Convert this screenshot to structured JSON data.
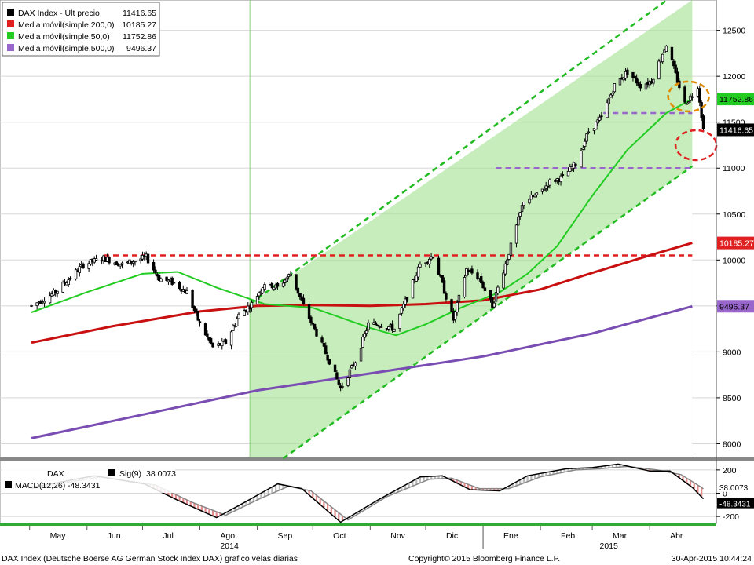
{
  "chart_data": {
    "type": "candlestick",
    "title": "DAX Index (Deutsche Boerse AG German Stock Index DAX) grafico velas diarias",
    "copyright": "Copyright© 2015 Bloomberg Finance L.P.",
    "timestamp": "30-Apr-2015 10:44:24",
    "x_months": [
      "May",
      "Jun",
      "Jul",
      "Ago",
      "Sep",
      "Oct",
      "Nov",
      "Dic",
      "Ene",
      "Feb",
      "Mar",
      "Abr"
    ],
    "x_years": [
      "2014",
      "2015"
    ],
    "y_ticks": [
      8000,
      8500,
      9000,
      9500,
      10000,
      10500,
      11000,
      11500,
      12000,
      12500
    ],
    "ylim": [
      7850,
      12830
    ],
    "legend": [
      {
        "label": "DAX Index - Últ precio",
        "value": "11416.65",
        "color": "#000000",
        "key": "price"
      },
      {
        "label": "Media móvil(simple,200,0)",
        "value": "10185.27",
        "color": "#e02020",
        "key": "ma200"
      },
      {
        "label": "Media móvil(simple,50,0)",
        "value": "11752.86",
        "color": "#22cc22",
        "key": "ma50"
      },
      {
        "label": "Media móvil(simple,500,0)",
        "value": "9496.37",
        "color": "#9966cc",
        "key": "ma500"
      }
    ],
    "right_labels": [
      {
        "value": 11752.86,
        "text": "11752.86",
        "bg": "#22cc22",
        "fg": "#000000"
      },
      {
        "value": 11416.65,
        "text": "11416.65",
        "bg": "#000000",
        "fg": "#ffffff"
      },
      {
        "value": 10185.27,
        "text": "10185.27",
        "bg": "#e02020",
        "fg": "#ffffff"
      },
      {
        "value": 9496.37,
        "text": "9496.37",
        "bg": "#9966cc",
        "fg": "#000000"
      }
    ],
    "price_path": [
      [
        "2014-05-02",
        9500
      ],
      [
        "2014-05-15",
        9650
      ],
      [
        "2014-05-30",
        9950
      ],
      [
        "2014-06-10",
        10020
      ],
      [
        "2014-06-20",
        9950
      ],
      [
        "2014-07-03",
        10030
      ],
      [
        "2014-07-10",
        9800
      ],
      [
        "2014-07-18",
        9750
      ],
      [
        "2014-07-25",
        9650
      ],
      [
        "2014-08-01",
        9300
      ],
      [
        "2014-08-08",
        9050
      ],
      [
        "2014-08-15",
        9100
      ],
      [
        "2014-08-22",
        9400
      ],
      [
        "2014-08-29",
        9520
      ],
      [
        "2014-09-05",
        9750
      ],
      [
        "2014-09-12",
        9700
      ],
      [
        "2014-09-19",
        9850
      ],
      [
        "2014-09-26",
        9500
      ],
      [
        "2014-10-03",
        9200
      ],
      [
        "2014-10-10",
        8900
      ],
      [
        "2014-10-16",
        8600
      ],
      [
        "2014-10-24",
        8900
      ],
      [
        "2014-10-31",
        9300
      ],
      [
        "2014-11-07",
        9300
      ],
      [
        "2014-11-14",
        9250
      ],
      [
        "2014-11-21",
        9600
      ],
      [
        "2014-11-28",
        9950
      ],
      [
        "2014-12-05",
        10050
      ],
      [
        "2014-12-12",
        9600
      ],
      [
        "2014-12-16",
        9350
      ],
      [
        "2014-12-23",
        9900
      ],
      [
        "2014-12-30",
        9800
      ],
      [
        "2015-01-06",
        9500
      ],
      [
        "2015-01-16",
        10150
      ],
      [
        "2015-01-23",
        10650
      ],
      [
        "2015-01-30",
        10700
      ],
      [
        "2015-02-06",
        10850
      ],
      [
        "2015-02-13",
        10900
      ],
      [
        "2015-02-20",
        11050
      ],
      [
        "2015-02-27",
        11400
      ],
      [
        "2015-03-06",
        11550
      ],
      [
        "2015-03-13",
        11900
      ],
      [
        "2015-03-20",
        12050
      ],
      [
        "2015-03-27",
        11900
      ],
      [
        "2015-04-02",
        11950
      ],
      [
        "2015-04-10",
        12350
      ],
      [
        "2015-04-16",
        11950
      ],
      [
        "2015-04-20",
        11700
      ],
      [
        "2015-04-24",
        11800
      ],
      [
        "2015-04-27",
        11900
      ],
      [
        "2015-04-30",
        11416.65
      ]
    ],
    "ma50": [
      [
        "2014-05-02",
        9430
      ],
      [
        "2014-06-01",
        9650
      ],
      [
        "2014-07-01",
        9850
      ],
      [
        "2014-07-20",
        9870
      ],
      [
        "2014-08-10",
        9700
      ],
      [
        "2014-09-05",
        9520
      ],
      [
        "2014-10-01",
        9480
      ],
      [
        "2014-11-01",
        9260
      ],
      [
        "2014-11-15",
        9180
      ],
      [
        "2014-12-01",
        9300
      ],
      [
        "2014-12-20",
        9480
      ],
      [
        "2015-01-10",
        9650
      ],
      [
        "2015-01-25",
        9850
      ],
      [
        "2015-02-10",
        10150
      ],
      [
        "2015-03-01",
        10700
      ],
      [
        "2015-03-20",
        11200
      ],
      [
        "2015-04-10",
        11600
      ],
      [
        "2015-04-24",
        11752.86
      ]
    ],
    "ma200": [
      [
        "2014-05-02",
        9100
      ],
      [
        "2014-06-15",
        9280
      ],
      [
        "2014-08-01",
        9440
      ],
      [
        "2014-09-01",
        9500
      ],
      [
        "2014-10-01",
        9510
      ],
      [
        "2014-11-01",
        9500
      ],
      [
        "2014-12-01",
        9520
      ],
      [
        "2015-01-01",
        9560
      ],
      [
        "2015-02-01",
        9680
      ],
      [
        "2015-03-01",
        9860
      ],
      [
        "2015-04-01",
        10050
      ],
      [
        "2015-04-24",
        10185.27
      ]
    ],
    "ma500": [
      [
        "2014-05-02",
        8060
      ],
      [
        "2014-09-01",
        8580
      ],
      [
        "2015-01-01",
        8950
      ],
      [
        "2015-03-01",
        9200
      ],
      [
        "2015-04-24",
        9496.37
      ]
    ],
    "channel_lines": [
      {
        "from": [
          "2014-08-28",
          9520
        ],
        "to": [
          "2015-04-24",
          13030
        ],
        "style": "dashed",
        "color": "#22bb22"
      },
      {
        "from": [
          "2014-09-15",
          7840
        ],
        "to": [
          "2015-04-24",
          11020
        ],
        "style": "dashed",
        "color": "#22bb22"
      }
    ],
    "channel_start": "2014-08-28",
    "h_levels": [
      {
        "value": 10050,
        "from": "2014-06-10",
        "to": "2015-04-24",
        "color": "#e02020"
      },
      {
        "value": 11600,
        "from": "2015-03-07",
        "to": "2015-04-24",
        "color": "#9966cc"
      },
      {
        "value": 11000,
        "from": "2015-01-08",
        "to": "2015-04-24",
        "color": "#9966cc"
      }
    ],
    "ellipses": [
      {
        "center": [
          "2015-04-22",
          11780
        ],
        "color": "#e08a00"
      },
      {
        "center": [
          "2015-04-26",
          11250
        ],
        "color": "#e02020"
      }
    ],
    "macd": {
      "header": "DAX",
      "sig_label": "Sig(9)",
      "sig_value": "38.0073",
      "macd_label": "MACD(12,26)",
      "macd_value": "-48.3431",
      "y_ticks": [
        200,
        0,
        -200
      ],
      "ylim": [
        -260,
        280
      ],
      "right_labels": [
        {
          "value": 38.0073,
          "text": "38.0073",
          "bg": "#ffffff",
          "fg": "#000000"
        },
        {
          "value": -48.3431,
          "text": "-48.3431",
          "bg": "#000000",
          "fg": "#ffffff"
        }
      ],
      "macd_path": [
        [
          "2014-05-02",
          50
        ],
        [
          "2014-06-05",
          150
        ],
        [
          "2014-07-02",
          80
        ],
        [
          "2014-07-20",
          -60
        ],
        [
          "2014-08-10",
          -210
        ],
        [
          "2014-08-25",
          -80
        ],
        [
          "2014-09-12",
          80
        ],
        [
          "2014-09-25",
          40
        ],
        [
          "2014-10-16",
          -250
        ],
        [
          "2014-11-05",
          -60
        ],
        [
          "2014-11-28",
          140
        ],
        [
          "2014-12-10",
          150
        ],
        [
          "2014-12-25",
          30
        ],
        [
          "2015-01-10",
          20
        ],
        [
          "2015-01-25",
          150
        ],
        [
          "2015-02-15",
          210
        ],
        [
          "2015-03-01",
          220
        ],
        [
          "2015-03-15",
          250
        ],
        [
          "2015-04-01",
          190
        ],
        [
          "2015-04-12",
          190
        ],
        [
          "2015-04-24",
          50
        ],
        [
          "2015-04-30",
          -48.3431
        ]
      ],
      "signal_path": [
        [
          "2014-05-02",
          40
        ],
        [
          "2014-06-08",
          140
        ],
        [
          "2014-07-08",
          70
        ],
        [
          "2014-07-28",
          -80
        ],
        [
          "2014-08-15",
          -190
        ],
        [
          "2014-09-02",
          -50
        ],
        [
          "2014-09-18",
          60
        ],
        [
          "2014-09-30",
          20
        ],
        [
          "2014-10-20",
          -230
        ],
        [
          "2014-11-10",
          -30
        ],
        [
          "2014-12-03",
          120
        ],
        [
          "2014-12-15",
          130
        ],
        [
          "2014-12-30",
          40
        ],
        [
          "2015-01-15",
          40
        ],
        [
          "2015-02-01",
          140
        ],
        [
          "2015-02-20",
          200
        ],
        [
          "2015-03-05",
          210
        ],
        [
          "2015-03-20",
          230
        ],
        [
          "2015-04-05",
          200
        ],
        [
          "2015-04-18",
          160
        ],
        [
          "2015-04-28",
          60
        ],
        [
          "2015-04-30",
          38.0073
        ]
      ]
    }
  }
}
